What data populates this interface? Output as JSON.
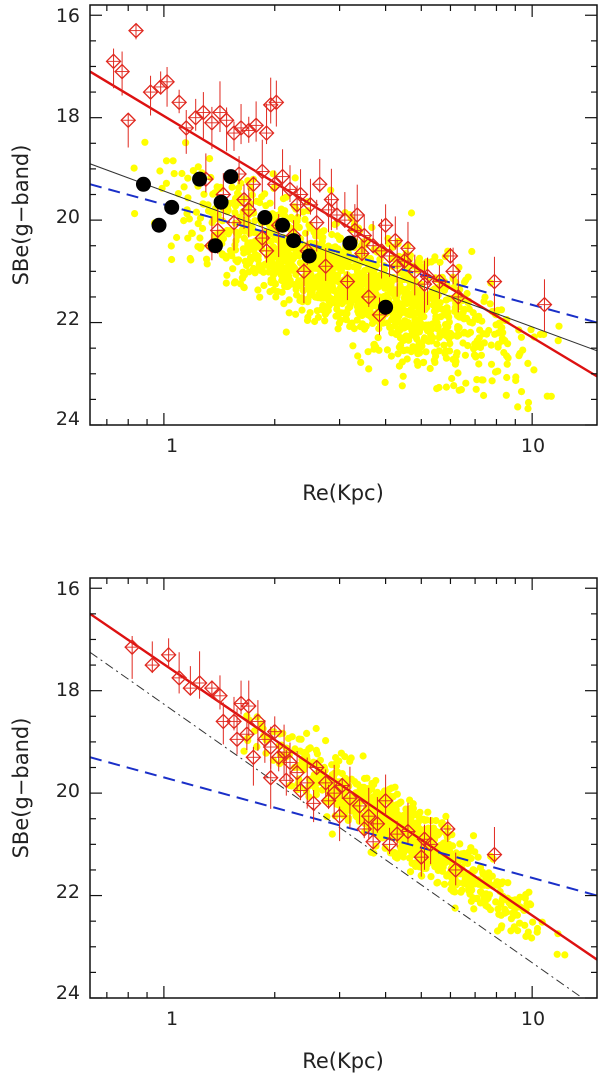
{
  "chart_data": [
    {
      "type": "scatter",
      "xscale": "log",
      "xlim": [
        0.63,
        15
      ],
      "ylim": [
        24,
        15.8
      ],
      "xlabel": "Re(Kpc)",
      "ylabel": "SBe(g−band)",
      "xtick_labels": [
        "1",
        "10"
      ],
      "ytick_labels": [
        "16",
        "18",
        "20",
        "22",
        "24"
      ],
      "background_cloud": {
        "color": "#ffff00",
        "trend_slope": 3.0,
        "trend_intercept": 19.7,
        "x_range": [
          0.7,
          14.5
        ],
        "scatter_sigma": 0.55,
        "count": 1400
      },
      "markers": {
        "diamonds": [
          [
            0.73,
            16.9
          ],
          [
            0.77,
            17.1
          ],
          [
            0.8,
            18.05
          ],
          [
            0.84,
            16.3
          ],
          [
            0.92,
            17.5
          ],
          [
            0.98,
            17.4
          ],
          [
            1.02,
            17.3
          ],
          [
            1.1,
            17.7
          ],
          [
            1.15,
            18.2
          ],
          [
            1.22,
            18.0
          ],
          [
            1.28,
            17.9
          ],
          [
            1.35,
            18.1
          ],
          [
            1.42,
            17.9
          ],
          [
            1.48,
            18.05
          ],
          [
            1.55,
            18.3
          ],
          [
            1.62,
            18.2
          ],
          [
            1.7,
            18.25
          ],
          [
            1.78,
            18.15
          ],
          [
            1.9,
            18.3
          ],
          [
            1.95,
            17.75
          ],
          [
            2.02,
            17.7
          ],
          [
            1.3,
            19.2
          ],
          [
            1.45,
            19.5
          ],
          [
            1.6,
            19.1
          ],
          [
            1.75,
            19.3
          ],
          [
            1.85,
            19.05
          ],
          [
            2.0,
            19.3
          ],
          [
            2.1,
            19.15
          ],
          [
            2.2,
            19.4
          ],
          [
            2.35,
            19.5
          ],
          [
            2.5,
            19.7
          ],
          [
            2.65,
            19.3
          ],
          [
            2.8,
            19.8
          ],
          [
            2.95,
            19.9
          ],
          [
            3.1,
            20.0
          ],
          [
            3.3,
            20.2
          ],
          [
            3.5,
            20.3
          ],
          [
            3.7,
            20.5
          ],
          [
            3.9,
            20.6
          ],
          [
            4.1,
            20.7
          ],
          [
            4.3,
            20.9
          ],
          [
            4.5,
            20.8
          ],
          [
            4.8,
            21.0
          ],
          [
            5.2,
            21.1
          ],
          [
            5.6,
            21.2
          ],
          [
            6.0,
            20.7
          ],
          [
            6.3,
            21.5
          ],
          [
            7.9,
            21.2
          ],
          [
            10.8,
            21.65
          ],
          [
            1.35,
            20.5
          ],
          [
            1.55,
            20.05
          ],
          [
            1.7,
            19.8
          ],
          [
            2.05,
            20.1
          ],
          [
            2.25,
            20.3
          ],
          [
            2.45,
            20.6
          ],
          [
            2.75,
            20.9
          ],
          [
            3.15,
            21.2
          ],
          [
            3.6,
            21.5
          ],
          [
            4.0,
            20.1
          ],
          [
            1.4,
            20.2
          ],
          [
            1.9,
            20.6
          ],
          [
            2.4,
            21.0
          ],
          [
            3.85,
            21.85
          ],
          [
            5.1,
            21.25
          ],
          [
            6.1,
            21.0
          ],
          [
            4.6,
            20.55
          ],
          [
            3.35,
            19.9
          ],
          [
            2.85,
            19.6
          ],
          [
            2.3,
            19.7
          ],
          [
            1.65,
            19.6
          ],
          [
            1.85,
            20.35
          ],
          [
            2.6,
            20.05
          ],
          [
            3.45,
            20.65
          ],
          [
            4.25,
            20.4
          ]
        ],
        "black_dots": [
          [
            0.88,
            19.3
          ],
          [
            0.97,
            20.1
          ],
          [
            1.05,
            19.75
          ],
          [
            1.25,
            19.2
          ],
          [
            1.38,
            20.5
          ],
          [
            1.43,
            19.65
          ],
          [
            1.52,
            19.15
          ],
          [
            1.88,
            19.95
          ],
          [
            2.1,
            20.1
          ],
          [
            2.25,
            20.4
          ],
          [
            2.48,
            20.7
          ],
          [
            3.2,
            20.45
          ],
          [
            4.0,
            21.7
          ]
        ]
      },
      "fit_lines": [
        {
          "name": "red-fit-line",
          "color": "#dd1111",
          "style": "solid",
          "from": [
            0.63,
            17.1
          ],
          "to": [
            15,
            23.05
          ]
        },
        {
          "name": "black-thin-line",
          "color": "#333333",
          "style": "solid",
          "from": [
            0.63,
            18.9
          ],
          "to": [
            15,
            22.55
          ]
        },
        {
          "name": "blue-dashed-line",
          "color": "#1a2fc8",
          "style": "dashed",
          "from": [
            0.63,
            19.3
          ],
          "to": [
            15,
            22.0
          ]
        }
      ]
    },
    {
      "type": "scatter",
      "xscale": "log",
      "xlim": [
        0.63,
        15
      ],
      "ylim": [
        24,
        15.8
      ],
      "xlabel": "Re(Kpc)",
      "ylabel": "SBe(g−band)",
      "xtick_labels": [
        "1",
        "10"
      ],
      "ytick_labels": [
        "16",
        "18",
        "20",
        "22",
        "24"
      ],
      "background_cloud": {
        "color": "#ffff00",
        "trend_slope": 4.9,
        "trend_intercept": 17.55,
        "x_range": [
          1.4,
          13.5
        ],
        "scatter_sigma": 0.3,
        "count": 900
      },
      "markers": {
        "diamonds": [
          [
            0.82,
            17.15
          ],
          [
            0.93,
            17.5
          ],
          [
            1.03,
            17.3
          ],
          [
            1.1,
            17.75
          ],
          [
            1.18,
            17.95
          ],
          [
            1.25,
            17.85
          ],
          [
            1.35,
            17.95
          ],
          [
            1.42,
            18.1
          ],
          [
            1.55,
            18.6
          ],
          [
            1.62,
            18.25
          ],
          [
            1.7,
            18.3
          ],
          [
            1.8,
            18.6
          ],
          [
            1.88,
            18.95
          ],
          [
            1.95,
            19.1
          ],
          [
            2.0,
            18.8
          ],
          [
            2.05,
            19.3
          ],
          [
            2.12,
            19.2
          ],
          [
            2.2,
            19.4
          ],
          [
            2.3,
            19.6
          ],
          [
            2.45,
            19.8
          ],
          [
            2.6,
            19.5
          ],
          [
            2.75,
            19.8
          ],
          [
            2.9,
            20.0
          ],
          [
            3.05,
            19.85
          ],
          [
            3.2,
            20.1
          ],
          [
            3.4,
            20.25
          ],
          [
            3.6,
            20.45
          ],
          [
            3.8,
            20.6
          ],
          [
            4.0,
            20.15
          ],
          [
            4.3,
            20.8
          ],
          [
            4.6,
            20.75
          ],
          [
            5.0,
            21.25
          ],
          [
            5.3,
            21.0
          ],
          [
            5.9,
            20.7
          ],
          [
            6.2,
            21.5
          ],
          [
            7.9,
            21.2
          ],
          [
            1.45,
            18.6
          ],
          [
            1.75,
            19.3
          ],
          [
            1.95,
            19.7
          ],
          [
            2.55,
            20.2
          ],
          [
            3.0,
            20.45
          ],
          [
            3.5,
            20.7
          ],
          [
            4.1,
            21.0
          ],
          [
            2.15,
            19.75
          ],
          [
            1.58,
            18.95
          ],
          [
            2.35,
            19.95
          ],
          [
            1.68,
            18.85
          ],
          [
            3.7,
            20.95
          ],
          [
            5.1,
            20.9
          ],
          [
            2.8,
            20.15
          ]
        ],
        "black_dots": []
      },
      "fit_lines": [
        {
          "name": "red-fit-line",
          "color": "#dd1111",
          "style": "solid",
          "from": [
            0.63,
            16.5
          ],
          "to": [
            15,
            23.25
          ]
        },
        {
          "name": "black-dashdot-line",
          "color": "#333333",
          "style": "dashdot",
          "from": [
            0.63,
            17.25
          ],
          "to": [
            15,
            24.2
          ]
        },
        {
          "name": "blue-dashed-line",
          "color": "#1a2fc8",
          "style": "dashed",
          "from": [
            0.63,
            19.3
          ],
          "to": [
            15,
            22.0
          ]
        }
      ]
    }
  ]
}
